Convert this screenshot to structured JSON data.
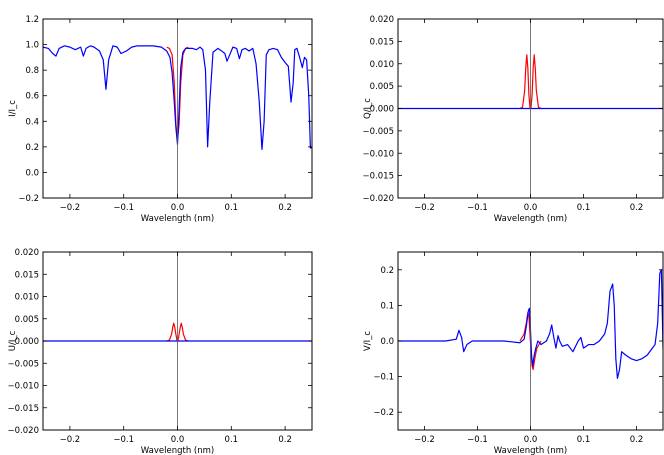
{
  "chart_data": [
    {
      "type": "line",
      "xlabel": "Wavelength (nm)",
      "ylabel": "I/I_c",
      "xlim": [
        -0.25,
        0.25
      ],
      "ylim": [
        -0.2,
        1.2
      ],
      "xticks": [
        -0.2,
        -0.1,
        0.0,
        0.1,
        0.2
      ],
      "xtick_labels": [
        "−0.2",
        "−0.1",
        "0.0",
        "0.1",
        "0.2"
      ],
      "yticks": [
        -0.2,
        0.0,
        0.2,
        0.4,
        0.6,
        0.8,
        1.0,
        1.2
      ],
      "ytick_labels": [
        "−0.2",
        "0.0",
        "0.2",
        "0.4",
        "0.6",
        "0.8",
        "1.0",
        "1.2"
      ],
      "vline_x": 0.0,
      "series": [
        {
          "color": "#ff0000",
          "x": [
            -0.02,
            -0.015,
            -0.01,
            -0.006,
            -0.003,
            0.0,
            0.003,
            0.006,
            0.01,
            0.015,
            0.02
          ],
          "y": [
            0.98,
            0.97,
            0.92,
            0.7,
            0.38,
            0.25,
            0.38,
            0.7,
            0.92,
            0.97,
            0.98
          ]
        },
        {
          "color": "#0000ff",
          "x": [
            -0.25,
            -0.24,
            -0.232,
            -0.226,
            -0.22,
            -0.21,
            -0.2,
            -0.19,
            -0.18,
            -0.175,
            -0.17,
            -0.162,
            -0.155,
            -0.145,
            -0.138,
            -0.133,
            -0.128,
            -0.12,
            -0.112,
            -0.105,
            -0.1,
            -0.095,
            -0.085,
            -0.075,
            -0.06,
            -0.045,
            -0.03,
            -0.02,
            -0.014,
            -0.01,
            -0.006,
            -0.003,
            0.0,
            0.003,
            0.006,
            0.01,
            0.015,
            0.02,
            0.028,
            0.035,
            0.042,
            0.047,
            0.052,
            0.056,
            0.06,
            0.066,
            0.075,
            0.082,
            0.088,
            0.092,
            0.097,
            0.103,
            0.11,
            0.115,
            0.12,
            0.126,
            0.133,
            0.14,
            0.146,
            0.152,
            0.157,
            0.161,
            0.165,
            0.17,
            0.178,
            0.186,
            0.193,
            0.2,
            0.206,
            0.211,
            0.215,
            0.218,
            0.222,
            0.227,
            0.232,
            0.236,
            0.24,
            0.244,
            0.247,
            0.25
          ],
          "y": [
            0.98,
            0.97,
            0.93,
            0.91,
            0.97,
            0.99,
            0.98,
            0.96,
            0.98,
            0.91,
            0.97,
            0.99,
            0.98,
            0.95,
            0.88,
            0.65,
            0.88,
            0.99,
            0.98,
            0.93,
            0.94,
            0.95,
            0.98,
            0.99,
            0.99,
            0.99,
            0.98,
            0.95,
            0.9,
            0.78,
            0.55,
            0.35,
            0.22,
            0.5,
            0.82,
            0.94,
            0.97,
            0.97,
            0.97,
            0.96,
            0.98,
            0.96,
            0.8,
            0.2,
            0.55,
            0.94,
            0.97,
            0.95,
            0.93,
            0.87,
            0.92,
            0.98,
            0.97,
            0.89,
            0.96,
            0.97,
            0.95,
            0.97,
            0.85,
            0.55,
            0.18,
            0.4,
            0.92,
            0.96,
            0.97,
            0.96,
            0.9,
            0.86,
            0.83,
            0.55,
            0.7,
            0.96,
            0.97,
            0.9,
            0.82,
            0.9,
            0.88,
            0.6,
            0.19,
            0.2
          ]
        }
      ]
    },
    {
      "type": "line",
      "xlabel": "Wavelength (nm)",
      "ylabel": "Q/I_c",
      "xlim": [
        -0.25,
        0.25
      ],
      "ylim": [
        -0.02,
        0.02
      ],
      "xticks": [
        -0.2,
        -0.1,
        0.0,
        0.1,
        0.2
      ],
      "xtick_labels": [
        "−0.2",
        "−0.1",
        "0.0",
        "0.1",
        "0.2"
      ],
      "yticks": [
        -0.02,
        -0.015,
        -0.01,
        -0.005,
        0.0,
        0.005,
        0.01,
        0.015,
        0.02
      ],
      "ytick_labels": [
        "−0.020",
        "−0.015",
        "−0.010",
        "−0.005",
        "0.000",
        "0.005",
        "0.010",
        "0.015",
        "0.020"
      ],
      "vline_x": 0.0,
      "series": [
        {
          "color": "#ff0000",
          "x": [
            -0.02,
            -0.015,
            -0.011,
            -0.009,
            -0.007,
            -0.005,
            -0.003,
            -0.001,
            0.0,
            0.001,
            0.003,
            0.005,
            0.007,
            0.009,
            0.011,
            0.015,
            0.02
          ],
          "y": [
            0.0,
            0.0003,
            0.004,
            0.009,
            0.012,
            0.009,
            0.003,
            0.0003,
            0.0,
            0.0003,
            0.003,
            0.009,
            0.012,
            0.009,
            0.004,
            0.0003,
            0.0
          ]
        },
        {
          "color": "#0000ff",
          "x": [
            -0.25,
            -0.2,
            -0.1,
            0.0,
            0.1,
            0.2,
            0.25
          ],
          "y": [
            0.0,
            0.0,
            0.0,
            0.0,
            0.0,
            0.0,
            0.0
          ]
        }
      ]
    },
    {
      "type": "line",
      "xlabel": "Wavelength (nm)",
      "ylabel": "U/I_c",
      "xlim": [
        -0.25,
        0.25
      ],
      "ylim": [
        -0.02,
        0.02
      ],
      "xticks": [
        -0.2,
        -0.1,
        0.0,
        0.1,
        0.2
      ],
      "xtick_labels": [
        "−0.2",
        "−0.1",
        "0.0",
        "0.1",
        "0.2"
      ],
      "yticks": [
        -0.02,
        -0.015,
        -0.01,
        -0.005,
        0.0,
        0.005,
        0.01,
        0.015,
        0.02
      ],
      "ytick_labels": [
        "−0.020",
        "−0.015",
        "−0.010",
        "−0.005",
        "0.000",
        "0.005",
        "0.010",
        "0.015",
        "0.020"
      ],
      "vline_x": 0.0,
      "series": [
        {
          "color": "#ff0000",
          "x": [
            -0.02,
            -0.015,
            -0.011,
            -0.009,
            -0.007,
            -0.005,
            -0.003,
            -0.001,
            0.0,
            0.001,
            0.003,
            0.005,
            0.007,
            0.009,
            0.011,
            0.015,
            0.02
          ],
          "y": [
            0.0,
            0.0002,
            0.0015,
            0.003,
            0.004,
            0.003,
            0.0015,
            0.0002,
            0.0,
            0.0002,
            0.0015,
            0.003,
            0.004,
            0.003,
            0.0015,
            0.0002,
            0.0
          ]
        },
        {
          "color": "#0000ff",
          "x": [
            -0.25,
            -0.2,
            -0.1,
            0.0,
            0.1,
            0.2,
            0.25
          ],
          "y": [
            0.0,
            0.0,
            0.0,
            0.0,
            0.0,
            0.0,
            0.0
          ]
        }
      ]
    },
    {
      "type": "line",
      "xlabel": "Wavelength (nm)",
      "ylabel": "V/I_c",
      "xlim": [
        -0.25,
        0.25
      ],
      "ylim": [
        -0.25,
        0.25
      ],
      "xticks": [
        -0.2,
        -0.1,
        0.0,
        0.1,
        0.2
      ],
      "xtick_labels": [
        "−0.2",
        "−0.1",
        "0.0",
        "0.1",
        "0.2"
      ],
      "yticks": [
        -0.2,
        -0.1,
        0.0,
        0.1,
        0.2
      ],
      "ytick_labels": [
        "−0.2",
        "−0.1",
        "0.0",
        "0.1",
        "0.2"
      ],
      "vline_x": 0.0,
      "series": [
        {
          "color": "#ff0000",
          "x": [
            -0.02,
            -0.012,
            -0.008,
            -0.005,
            -0.003,
            -0.001,
            0.001,
            0.003,
            0.005,
            0.008,
            0.012,
            0.02
          ],
          "y": [
            0.0,
            0.02,
            0.05,
            0.08,
            0.07,
            0.02,
            -0.03,
            -0.07,
            -0.08,
            -0.05,
            -0.02,
            0.0
          ]
        },
        {
          "color": "#0000ff",
          "x": [
            -0.25,
            -0.2,
            -0.16,
            -0.14,
            -0.135,
            -0.13,
            -0.126,
            -0.12,
            -0.11,
            -0.1,
            -0.05,
            -0.02,
            -0.012,
            -0.008,
            -0.004,
            -0.002,
            0.0,
            0.002,
            0.004,
            0.007,
            0.01,
            0.014,
            0.02,
            0.03,
            0.036,
            0.04,
            0.044,
            0.048,
            0.052,
            0.055,
            0.06,
            0.07,
            0.08,
            0.09,
            0.095,
            0.1,
            0.11,
            0.12,
            0.13,
            0.14,
            0.145,
            0.15,
            0.155,
            0.158,
            0.161,
            0.164,
            0.168,
            0.172,
            0.18,
            0.19,
            0.2,
            0.21,
            0.22,
            0.23,
            0.235,
            0.24,
            0.244,
            0.247,
            0.25
          ],
          "y": [
            0.0,
            0.0,
            0.0,
            0.005,
            0.03,
            0.01,
            -0.03,
            -0.01,
            0.0,
            0.0,
            0.0,
            -0.005,
            0.005,
            0.04,
            0.085,
            0.092,
            0.03,
            -0.04,
            -0.07,
            -0.04,
            -0.02,
            0.0,
            -0.01,
            0.0,
            0.02,
            0.045,
            0.01,
            -0.02,
            0.015,
            0.0,
            -0.015,
            -0.01,
            -0.03,
            0.0,
            0.01,
            -0.02,
            -0.01,
            -0.01,
            0.0,
            0.02,
            0.05,
            0.14,
            0.16,
            0.1,
            -0.05,
            -0.105,
            -0.08,
            -0.03,
            -0.04,
            -0.05,
            -0.055,
            -0.05,
            -0.04,
            -0.02,
            -0.01,
            0.05,
            0.19,
            0.2,
            -0.02
          ]
        }
      ]
    }
  ]
}
